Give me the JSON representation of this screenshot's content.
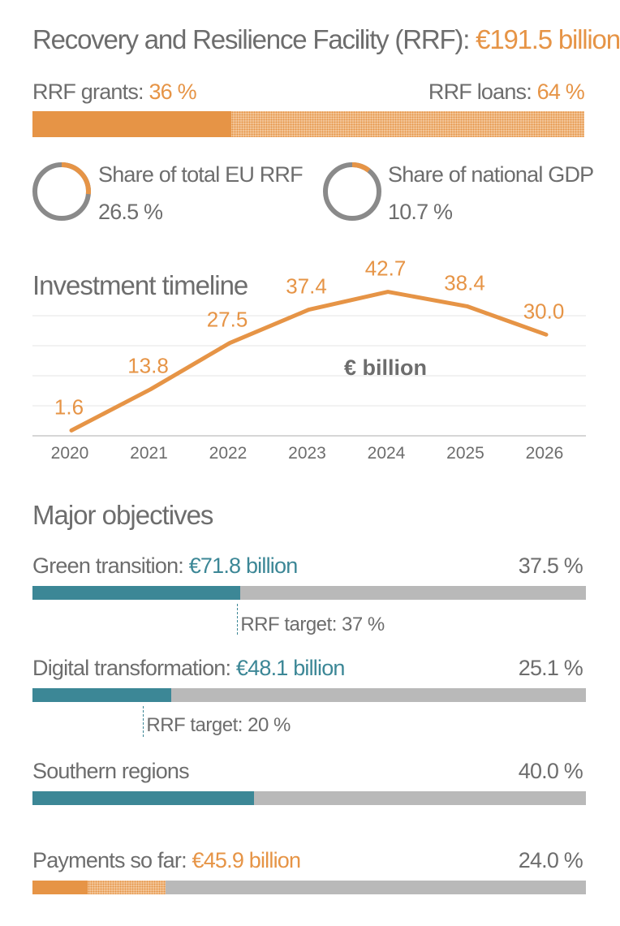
{
  "header": {
    "title_prefix": "Recovery and Resilience Facility (RRF):",
    "title_value": "€191.5 billion"
  },
  "split": {
    "grants_label": "RRF grants:",
    "grants_value": "36 %",
    "loans_label": "RRF loans:",
    "loans_value": "64 %",
    "grants_pct": 36
  },
  "donuts": [
    {
      "label": "Share of total EU RRF",
      "value_text": "26.5 %",
      "value": 26.5
    },
    {
      "label": "Share of national GDP",
      "value_text": "10.7 %",
      "value": 10.7
    }
  ],
  "chart_data": {
    "type": "line",
    "title": "Investment timeline",
    "unit_label": "€ billion",
    "x": [
      "2020",
      "2021",
      "2022",
      "2023",
      "2024",
      "2025",
      "2026"
    ],
    "values": [
      1.6,
      13.8,
      27.5,
      37.4,
      42.7,
      38.4,
      30.0
    ],
    "value_labels": [
      "1.6",
      "13.8",
      "27.5",
      "37.4",
      "42.7",
      "38.4",
      "30.0"
    ],
    "ylim": [
      0,
      45
    ],
    "grid": true,
    "color": "#e69446"
  },
  "objectives": {
    "title": "Major objectives",
    "items": [
      {
        "label": "Green transition:",
        "amount": "€71.8 billion",
        "pct_text": "37.5 %",
        "pct": 37.5,
        "target_text": "RRF target: 37 %",
        "target": 37
      },
      {
        "label": "Digital transformation:",
        "amount": "€48.1 billion",
        "pct_text": "25.1 %",
        "pct": 25.1,
        "target_text": "RRF target: 20 %",
        "target": 20
      },
      {
        "label": "Southern regions",
        "amount": "",
        "pct_text": "40.0 %",
        "pct": 40.0
      }
    ]
  },
  "payments": {
    "label": "Payments so far:",
    "amount": "€45.9 billion",
    "pct_text": "24.0 %",
    "pct": 24.0,
    "grants_part_pct": 10
  },
  "colors": {
    "orange": "#e69446",
    "orange_light": "#f2c69a",
    "teal": "#3c8796",
    "gray": "#b9b9b9",
    "text": "#6d6d6d"
  }
}
